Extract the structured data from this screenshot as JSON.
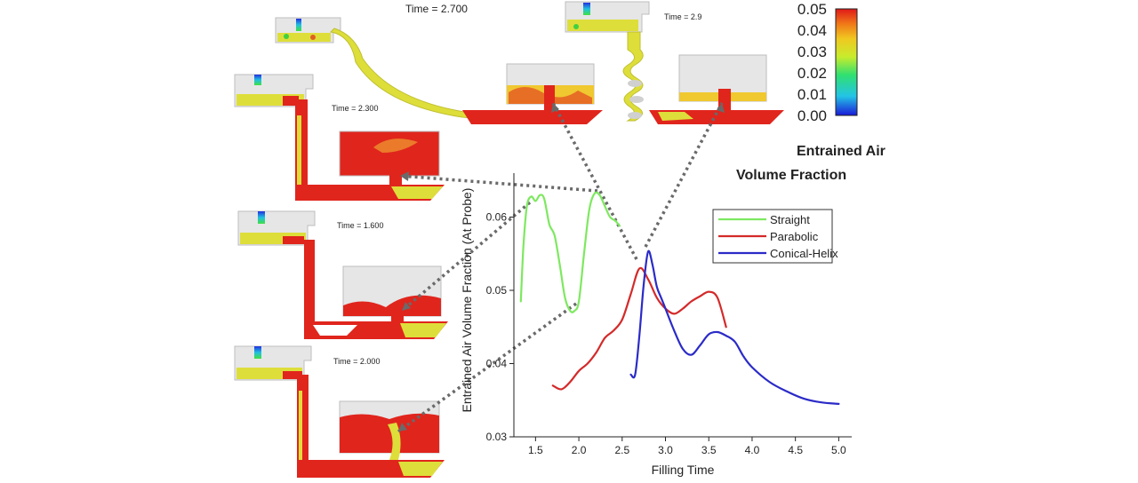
{
  "chart_data": {
    "type": "line",
    "xlabel": "Filling Time",
    "ylabel": "Entrained Air Volume Fraction (At Probe)",
    "xlim": [
      1.25,
      5.15
    ],
    "ylim": [
      0.03,
      0.066
    ],
    "x_ticks": [
      {
        "value": 1.5,
        "label": "1.5"
      },
      {
        "value": 2.0,
        "label": "2.0"
      },
      {
        "value": 2.5,
        "label": "2.5"
      },
      {
        "value": 3.0,
        "label": "3.0"
      },
      {
        "value": 3.5,
        "label": "3.5"
      },
      {
        "value": 4.0,
        "label": "4.0"
      },
      {
        "value": 4.5,
        "label": "4.5"
      },
      {
        "value": 5.0,
        "label": "5.0"
      }
    ],
    "y_ticks": [
      {
        "value": 0.03,
        "label": "0.03"
      },
      {
        "value": 0.04,
        "label": "0.04"
      },
      {
        "value": 0.05,
        "label": "0.05"
      },
      {
        "value": 0.06,
        "label": "0.06"
      }
    ],
    "legend_position": "top-right",
    "series": [
      {
        "name": "Straight",
        "color": "#7ee860",
        "x": [
          1.33,
          1.36,
          1.4,
          1.45,
          1.5,
          1.55,
          1.6,
          1.66,
          1.72,
          1.78,
          1.84,
          1.9,
          1.95,
          2.0,
          2.06,
          2.12,
          2.18,
          2.24,
          2.3,
          2.36,
          2.42,
          2.47
        ],
        "y": [
          0.0485,
          0.056,
          0.0615,
          0.0628,
          0.0622,
          0.063,
          0.0625,
          0.059,
          0.0575,
          0.0535,
          0.049,
          0.0472,
          0.0472,
          0.0485,
          0.055,
          0.061,
          0.0632,
          0.063,
          0.0615,
          0.06,
          0.0595,
          0.0588
        ]
      },
      {
        "name": "Parabolic",
        "color": "#d42a2a",
        "x": [
          1.7,
          1.8,
          1.9,
          2.0,
          2.1,
          2.2,
          2.3,
          2.4,
          2.5,
          2.6,
          2.7,
          2.8,
          2.9,
          3.0,
          3.1,
          3.2,
          3.3,
          3.4,
          3.5,
          3.6,
          3.7
        ],
        "y": [
          0.037,
          0.0365,
          0.0375,
          0.039,
          0.04,
          0.0415,
          0.0435,
          0.0445,
          0.046,
          0.0495,
          0.053,
          0.0515,
          0.049,
          0.0475,
          0.0468,
          0.0475,
          0.0485,
          0.0492,
          0.0498,
          0.049,
          0.045
        ]
      },
      {
        "name": "Conical-Helix",
        "color": "#2b2bc8",
        "x": [
          2.6,
          2.65,
          2.7,
          2.75,
          2.8,
          2.85,
          2.9,
          2.95,
          3.0,
          3.1,
          3.2,
          3.3,
          3.4,
          3.5,
          3.6,
          3.7,
          3.8,
          3.9,
          4.0,
          4.2,
          4.4,
          4.6,
          4.8,
          5.0
        ],
        "y": [
          0.0385,
          0.0385,
          0.044,
          0.051,
          0.0553,
          0.0535,
          0.0505,
          0.049,
          0.0475,
          0.0445,
          0.042,
          0.0412,
          0.0425,
          0.044,
          0.0443,
          0.0438,
          0.043,
          0.041,
          0.0395,
          0.0375,
          0.0362,
          0.0352,
          0.0347,
          0.0345
        ]
      }
    ]
  },
  "snapshot_labels": {
    "t2700": "Time = 2.700",
    "t29": "Time = 2.9",
    "t2300": "Time = 2.300",
    "t1600": "Time = 1.600",
    "t2000": "Time = 2.000"
  },
  "colorbar": {
    "ticks": [
      "0.05",
      "0.04",
      "0.03",
      "0.02",
      "0.01",
      "0.00"
    ],
    "title_line1": "Entrained Air",
    "title_line2": "Volume Fraction"
  },
  "colors": {
    "melt_red": "#e0251d",
    "melt_yellow": "#dede3a",
    "cavity_grey": "#e6e6e6",
    "connector_grey": "#6a6a6a"
  }
}
